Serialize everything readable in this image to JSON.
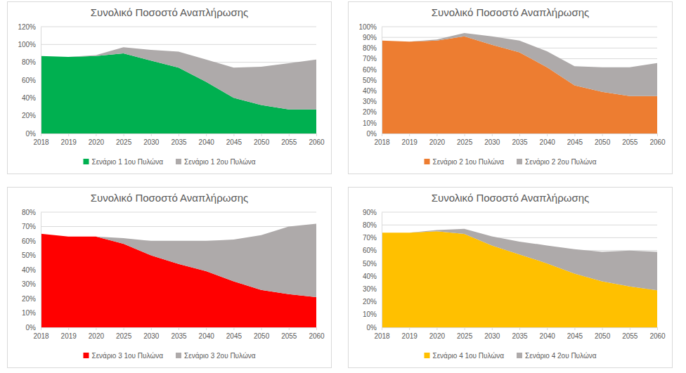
{
  "chart_data": [
    {
      "type": "area",
      "title": "Συνολικό Ποσοστό Αναπλήρωσης",
      "stacked": true,
      "grid": true,
      "legend": "bottom",
      "categories": [
        "2018",
        "2019",
        "2020",
        "2025",
        "2030",
        "2035",
        "2040",
        "2045",
        "2050",
        "2055",
        "2060"
      ],
      "series": [
        {
          "name": "Σενάριο 1 1ου Πυλώνα",
          "color": "#00b050",
          "values": [
            87,
            86,
            87,
            90,
            82,
            74,
            58,
            40,
            32,
            27,
            27
          ]
        },
        {
          "name": "Σενάριο 1 2ου Πυλώνα",
          "color": "#aeaaaa",
          "values": [
            0,
            0,
            1,
            7,
            12,
            18,
            25,
            34,
            43,
            52,
            56
          ]
        }
      ],
      "ylim": [
        0,
        120
      ],
      "yticks": [
        {
          "value": 0,
          "label": "0%"
        },
        {
          "value": 20,
          "label": "20%"
        },
        {
          "value": 40,
          "label": "40%"
        },
        {
          "value": 60,
          "label": "60%"
        },
        {
          "value": 80,
          "label": "80%"
        },
        {
          "value": 100,
          "label": "100%"
        },
        {
          "value": 120,
          "label": "120%"
        }
      ]
    },
    {
      "type": "area",
      "title": "Συνολικό Ποσοστό Αναπλήρωσης",
      "stacked": true,
      "grid": true,
      "legend": "bottom",
      "categories": [
        "2018",
        "2019",
        "2020",
        "2025",
        "2030",
        "2035",
        "2040",
        "2045",
        "2050",
        "2055",
        "2060"
      ],
      "series": [
        {
          "name": "Σενάριο 2 1ου Πυλώνα",
          "color": "#ed7d31",
          "values": [
            87,
            86,
            87,
            91,
            83,
            76,
            62,
            45,
            39,
            35,
            35
          ]
        },
        {
          "name": "Σενάριο 2 2ου Πυλώνα",
          "color": "#aeaaaa",
          "values": [
            0,
            0,
            1,
            3,
            8,
            11,
            15,
            18,
            23,
            27,
            31
          ]
        }
      ],
      "ylim": [
        0,
        100
      ],
      "yticks": [
        {
          "value": 0,
          "label": "0%"
        },
        {
          "value": 10,
          "label": "10%"
        },
        {
          "value": 20,
          "label": "20%"
        },
        {
          "value": 30,
          "label": "30%"
        },
        {
          "value": 40,
          "label": "40%"
        },
        {
          "value": 50,
          "label": "50%"
        },
        {
          "value": 60,
          "label": "60%"
        },
        {
          "value": 70,
          "label": "70%"
        },
        {
          "value": 80,
          "label": "80%"
        },
        {
          "value": 90,
          "label": "90%"
        },
        {
          "value": 100,
          "label": "100%"
        }
      ]
    },
    {
      "type": "area",
      "title": "Συνολικό Ποσοστό Αναπλήρωσης",
      "stacked": true,
      "grid": true,
      "legend": "bottom",
      "categories": [
        "2018",
        "2019",
        "2020",
        "2025",
        "2030",
        "2035",
        "2040",
        "2045",
        "2050",
        "2055",
        "2060"
      ],
      "series": [
        {
          "name": "Σενάριο 3 1ου Πυλώνα",
          "color": "#ff0000",
          "values": [
            65,
            63,
            63,
            58,
            50,
            44,
            39,
            32,
            26,
            23,
            21
          ]
        },
        {
          "name": "Σενάριο 3 2ου Πυλώνα",
          "color": "#aeaaaa",
          "values": [
            0,
            0,
            0,
            4,
            10,
            16,
            21,
            29,
            38,
            47,
            51
          ]
        }
      ],
      "ylim": [
        0,
        80
      ],
      "yticks": [
        {
          "value": 0,
          "label": "0%"
        },
        {
          "value": 10,
          "label": "10%"
        },
        {
          "value": 20,
          "label": "20%"
        },
        {
          "value": 30,
          "label": "30%"
        },
        {
          "value": 40,
          "label": "40%"
        },
        {
          "value": 50,
          "label": "50%"
        },
        {
          "value": 60,
          "label": "60%"
        },
        {
          "value": 70,
          "label": "70%"
        },
        {
          "value": 80,
          "label": "80%"
        }
      ]
    },
    {
      "type": "area",
      "title": "Συνολικό Ποσοστό Αναπλήρωσης",
      "stacked": true,
      "grid": true,
      "legend": "bottom",
      "categories": [
        "2018",
        "2019",
        "2020",
        "2025",
        "2030",
        "2035",
        "2040",
        "2045",
        "2050",
        "2055",
        "2060"
      ],
      "series": [
        {
          "name": "Σενάριο 4 1ου Πυλώνα",
          "color": "#ffc000",
          "values": [
            74,
            74,
            75,
            73,
            64,
            57,
            50,
            42,
            36,
            32,
            29
          ]
        },
        {
          "name": "Σενάριο 4 2ου Πυλώνα",
          "color": "#aeaaaa",
          "values": [
            0,
            0,
            1,
            4,
            7,
            10,
            14,
            19,
            23,
            28,
            30
          ]
        }
      ],
      "ylim": [
        0,
        90
      ],
      "yticks": [
        {
          "value": 0,
          "label": "0%"
        },
        {
          "value": 10,
          "label": "10%"
        },
        {
          "value": 20,
          "label": "20%"
        },
        {
          "value": 30,
          "label": "30%"
        },
        {
          "value": 40,
          "label": "40%"
        },
        {
          "value": 50,
          "label": "50%"
        },
        {
          "value": 60,
          "label": "60%"
        },
        {
          "value": 70,
          "label": "70%"
        },
        {
          "value": 80,
          "label": "80%"
        },
        {
          "value": 90,
          "label": "90%"
        }
      ]
    }
  ]
}
